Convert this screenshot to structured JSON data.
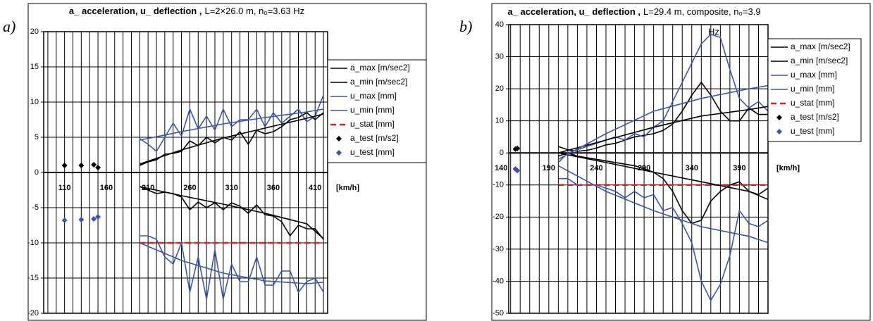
{
  "chart_data": [
    {
      "type": "line",
      "panel_label": "a)",
      "title_bold": "a_ acceleration, u_ deflection ,",
      "title_rest": "L=2×26.0 m, n₀=3.63 Hz",
      "x_unit_label": "[km/h]",
      "grid": true,
      "legend": "right",
      "xlim": [
        85,
        425
      ],
      "ylim": [
        -20,
        20
      ],
      "xticks": [
        110,
        160,
        210,
        260,
        310,
        360,
        410
      ],
      "xgrid": [
        90,
        100,
        110,
        120,
        130,
        140,
        150,
        160,
        170,
        180,
        190,
        200,
        210,
        220,
        230,
        240,
        250,
        260,
        270,
        280,
        290,
        300,
        310,
        320,
        330,
        340,
        350,
        360,
        370,
        380,
        390,
        400,
        410,
        420
      ],
      "yticks": [
        -20,
        -15,
        -10,
        -5,
        0,
        5,
        10,
        15,
        20
      ],
      "series": [
        {
          "name": "a_max [m/sec2]",
          "color": "#000000",
          "x": [
            200,
            210,
            220,
            230,
            240,
            250,
            260,
            270,
            280,
            290,
            300,
            310,
            320,
            330,
            340,
            350,
            360,
            370,
            380,
            390,
            400,
            410,
            420
          ],
          "values": [
            1,
            1.5,
            1.8,
            2.6,
            2.7,
            3,
            4.5,
            3.8,
            5,
            4.2,
            5,
            4.6,
            5.8,
            4,
            6,
            5.5,
            5.8,
            6.5,
            7.5,
            7.8,
            8.5,
            7.5,
            8.5
          ]
        },
        {
          "name": "a_min [m/sec2]",
          "color": "#000000",
          "x": [
            200,
            210,
            220,
            230,
            240,
            250,
            260,
            270,
            280,
            290,
            300,
            310,
            320,
            330,
            340,
            350,
            360,
            370,
            380,
            390,
            400,
            410,
            420
          ],
          "values": [
            -2,
            -2.5,
            -3,
            -2.8,
            -3,
            -3.5,
            -5.3,
            -4.2,
            -5,
            -4.3,
            -5.3,
            -4.3,
            -4.8,
            -5.8,
            -4.6,
            -6,
            -6.2,
            -7,
            -9,
            -7.5,
            -8,
            -8,
            -9.5
          ]
        },
        {
          "name": "u_max [mm]",
          "color": "#3a56a8",
          "x": [
            200,
            210,
            220,
            230,
            240,
            250,
            260,
            270,
            280,
            290,
            300,
            310,
            320,
            330,
            340,
            350,
            360,
            370,
            380,
            390,
            400,
            410,
            420
          ],
          "values": [
            4.8,
            4,
            3,
            5,
            7,
            5.2,
            9,
            6.2,
            8,
            6,
            9,
            6.5,
            7.5,
            7.5,
            9,
            6.5,
            8.5,
            7,
            8,
            9,
            7.2,
            8,
            11
          ]
        },
        {
          "name": "u_min [mm]",
          "color": "#3a56a8",
          "x": [
            200,
            210,
            220,
            230,
            240,
            250,
            260,
            270,
            280,
            290,
            300,
            310,
            320,
            330,
            340,
            350,
            360,
            370,
            380,
            390,
            400,
            410,
            420
          ],
          "values": [
            -9,
            -9,
            -9.5,
            -12,
            -13,
            -10,
            -17,
            -12,
            -18,
            -11,
            -18,
            -13,
            -15.5,
            -15.5,
            -12,
            -16,
            -16,
            -14,
            -14,
            -17,
            -15.5,
            -15,
            -17
          ]
        },
        {
          "name": "u_stat [mm]",
          "color": "#e02020",
          "dash": "8 5",
          "x": [
            200,
            420
          ],
          "values": [
            -10,
            -10
          ]
        },
        {
          "name": "a_test [m/s2]",
          "color": "#000000",
          "marker": "diamond",
          "x": [
            110,
            130,
            145,
            150
          ],
          "values": [
            1,
            1,
            1.1,
            0.7
          ]
        },
        {
          "name": "u_test  [mm]",
          "color": "#3a56a8",
          "marker": "diamond",
          "x": [
            110,
            130,
            145,
            150
          ],
          "values": [
            -6.8,
            -6.7,
            -6.6,
            -6.3
          ]
        },
        {
          "color": "#000000",
          "x": [
            200,
            250,
            300,
            350,
            400,
            420
          ],
          "values": [
            1.2,
            3.2,
            4.9,
            6.3,
            7.7,
            8.3
          ]
        },
        {
          "color": "#000000",
          "x": [
            200,
            250,
            300,
            350,
            400,
            420
          ],
          "values": [
            -2,
            -3.3,
            -4.5,
            -5.8,
            -7.3,
            -9.4
          ]
        },
        {
          "color": "#3a56a8",
          "x": [
            200,
            250,
            300,
            350,
            400,
            420
          ],
          "values": [
            4.6,
            5.8,
            6.9,
            7.8,
            8.6,
            9
          ]
        },
        {
          "color": "#3a56a8",
          "x": [
            200,
            250,
            300,
            350,
            400,
            420
          ],
          "values": [
            -10,
            -12.5,
            -14.3,
            -15.4,
            -15.8,
            -15.6
          ]
        }
      ]
    },
    {
      "type": "line",
      "panel_label": "b)",
      "title_bold": "a_ acceleration, u_ deflection ,",
      "title_rest": "L=29.4 m, composite, n₀=3.9",
      "title_wrap": "Hz",
      "x_unit_label": "[km/h]",
      "grid": true,
      "legend": "right",
      "xlim": [
        148,
        420
      ],
      "ylim": [
        -50,
        40
      ],
      "xticks": [
        140,
        190,
        240,
        290,
        340,
        390
      ],
      "xgrid": [
        150,
        160,
        170,
        180,
        190,
        200,
        210,
        220,
        230,
        240,
        250,
        260,
        270,
        280,
        290,
        300,
        310,
        320,
        330,
        340,
        350,
        360,
        370,
        380,
        390,
        400,
        410,
        420
      ],
      "yticks": [
        -50,
        -40,
        -30,
        -20,
        -10,
        0,
        10,
        20,
        30,
        40
      ],
      "series": [
        {
          "name": "a_max [m/sec2]",
          "color": "#000000",
          "x": [
            200,
            210,
            220,
            230,
            240,
            250,
            260,
            270,
            280,
            290,
            300,
            310,
            320,
            330,
            340,
            350,
            360,
            370,
            380,
            390,
            400,
            410,
            420
          ],
          "values": [
            2,
            1,
            0.5,
            0.8,
            1.5,
            2.5,
            3,
            4,
            5,
            5.5,
            6,
            7,
            9,
            13,
            18,
            22,
            18,
            13,
            10,
            10,
            14,
            12,
            12
          ]
        },
        {
          "name": "a_min [m/sec2]",
          "color": "#000000",
          "x": [
            200,
            210,
            220,
            230,
            240,
            250,
            260,
            270,
            280,
            290,
            300,
            310,
            320,
            330,
            340,
            350,
            360,
            370,
            380,
            390,
            400,
            410,
            420
          ],
          "values": [
            -1,
            0,
            -1,
            -1.5,
            -2,
            -2.5,
            -3,
            -3.5,
            -4,
            -5,
            -6,
            -8,
            -12,
            -18,
            -22,
            -21,
            -15,
            -12,
            -10,
            -9,
            -12,
            -13,
            -11
          ]
        },
        {
          "name": "u_max [mm]",
          "color": "#3a56a8",
          "x": [
            200,
            210,
            220,
            230,
            240,
            250,
            260,
            270,
            280,
            290,
            300,
            310,
            320,
            330,
            340,
            350,
            360,
            370,
            380,
            390,
            400,
            410,
            420
          ],
          "values": [
            -3,
            0,
            1,
            2,
            3,
            4,
            5,
            4,
            6,
            5,
            8,
            10,
            16,
            22,
            28,
            34,
            37,
            36,
            26,
            17,
            14,
            16,
            13
          ]
        },
        {
          "name": "u_min [mm]",
          "color": "#3a56a8",
          "x": [
            200,
            210,
            220,
            230,
            240,
            250,
            260,
            270,
            280,
            290,
            300,
            310,
            320,
            330,
            340,
            350,
            360,
            370,
            380,
            390,
            400,
            410,
            420
          ],
          "values": [
            -8,
            -8,
            -10,
            -10,
            -10,
            -11,
            -12,
            -14,
            -12,
            -14,
            -13,
            -18,
            -17,
            -22,
            -28,
            -40,
            -46,
            -41,
            -32,
            -18,
            -22,
            -23,
            -21
          ]
        },
        {
          "name": "u_stat [mm]",
          "color": "#e02020",
          "dash": "8 5",
          "x": [
            200,
            420
          ],
          "values": [
            -10,
            -10
          ]
        },
        {
          "name": "a_test [m/s2]",
          "color": "#000000",
          "marker": "diamond",
          "x": [
            155,
            157
          ],
          "values": [
            1.2,
            1.4
          ]
        },
        {
          "name": "u_test [mm]",
          "color": "#3a56a8",
          "marker": "diamond",
          "x": [
            155,
            157
          ],
          "values": [
            -5,
            -5.5
          ]
        },
        {
          "color": "#000000",
          "x": [
            200,
            250,
            300,
            350,
            400,
            420
          ],
          "values": [
            0,
            4,
            8,
            11.5,
            13.5,
            14.5
          ]
        },
        {
          "color": "#000000",
          "x": [
            200,
            250,
            300,
            350,
            400,
            420
          ],
          "values": [
            0,
            -3,
            -6,
            -9,
            -12,
            -14.5
          ]
        },
        {
          "color": "#3a56a8",
          "x": [
            200,
            250,
            300,
            350,
            400,
            420
          ],
          "values": [
            -2,
            6,
            13,
            17,
            20,
            21
          ]
        },
        {
          "color": "#3a56a8",
          "x": [
            200,
            250,
            300,
            350,
            400,
            420
          ],
          "values": [
            -4,
            -12,
            -18,
            -23,
            -26,
            -28
          ]
        }
      ]
    }
  ]
}
